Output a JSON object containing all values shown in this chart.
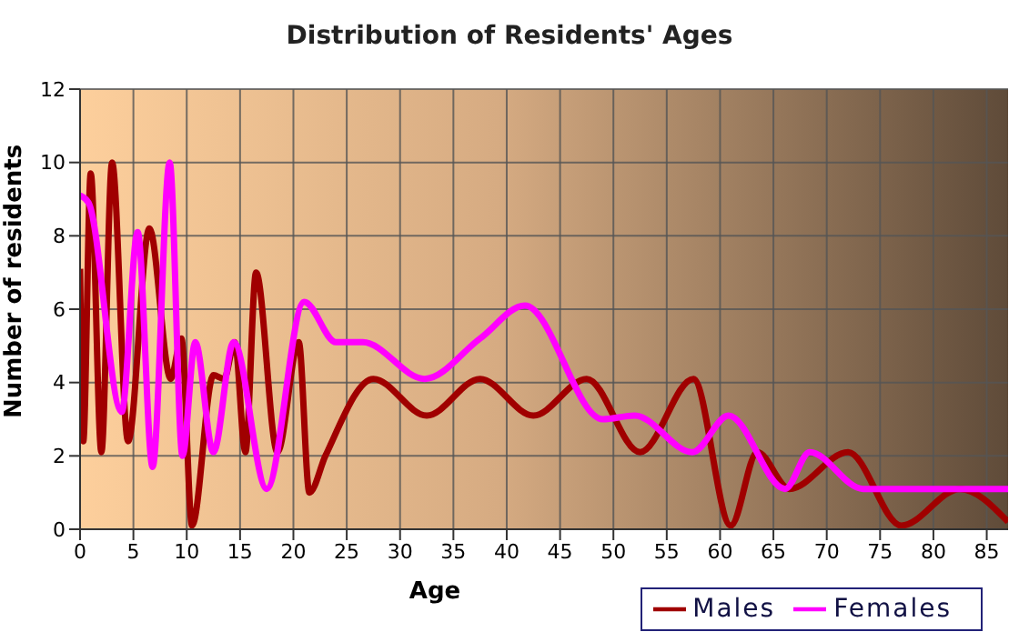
{
  "chart_data": {
    "type": "line",
    "title": "Distribution of Residents' Ages",
    "xlabel": "Age",
    "ylabel": "Number of residents",
    "xlim": [
      0,
      87
    ],
    "xticks": [
      0,
      5,
      10,
      15,
      20,
      25,
      30,
      35,
      40,
      45,
      50,
      55,
      60,
      65,
      70,
      75,
      80,
      85
    ],
    "ylim": [
      0,
      12
    ],
    "yticks": [
      0,
      2,
      4,
      6,
      8,
      10,
      12
    ],
    "grid": true,
    "legend": "bottom right",
    "marker": "none",
    "line_style": "solid",
    "series": [
      {
        "name": "Males",
        "color": "#a00000",
        "x": [
          0,
          0.3,
          1,
          2,
          3,
          4.5,
          6.5,
          8.5,
          9.5,
          10.5,
          12.5,
          13.5,
          14.5,
          15.5,
          16.5,
          18.5,
          20.5,
          21.5,
          23,
          27.5,
          32.5,
          37.5,
          42.5,
          47.5,
          52.5,
          57.5,
          61,
          63.5,
          66.5,
          72,
          77,
          82.5,
          87
        ],
        "values": [
          7.1,
          2.4,
          9.7,
          2.1,
          10,
          2.4,
          8.2,
          4.1,
          5.2,
          0.1,
          4.2,
          4.1,
          5.1,
          2.1,
          7,
          2.1,
          5.1,
          1,
          2,
          4.1,
          3.1,
          4.1,
          3.1,
          4.1,
          2.1,
          4.1,
          0.1,
          2.1,
          1.1,
          2.1,
          0.1,
          1.1,
          0.2
        ]
      },
      {
        "name": "Females",
        "color": "#ff00ff",
        "x": [
          0,
          0.8,
          3.9,
          5.4,
          6.8,
          8.4,
          9.6,
          10.8,
          12.5,
          14.4,
          17.5,
          21,
          24,
          26.5,
          32.3,
          37.5,
          41.7,
          49,
          52,
          57.4,
          60.8,
          66.1,
          68.4,
          73.4,
          87
        ],
        "values": [
          9.1,
          8.9,
          3.2,
          8.1,
          1.7,
          10,
          2,
          5.1,
          2.1,
          5.1,
          1.1,
          6.2,
          5.1,
          5.1,
          4.1,
          5.2,
          6.1,
          3,
          3.1,
          2.1,
          3.1,
          1.1,
          2.1,
          1.1,
          1.1
        ]
      }
    ]
  }
}
